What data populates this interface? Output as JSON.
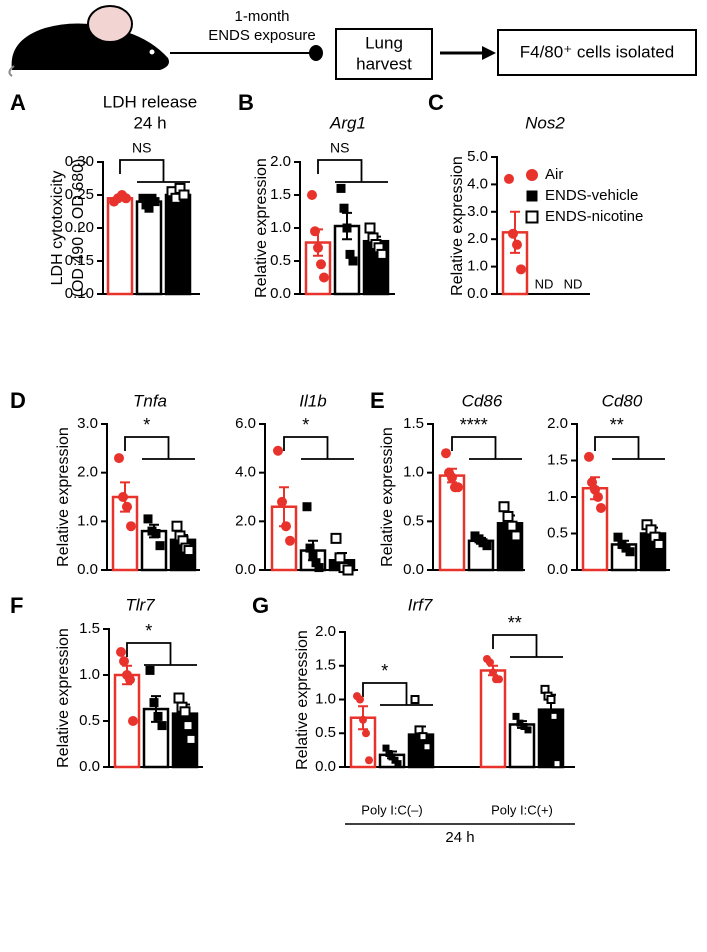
{
  "diagram": {
    "exposure": [
      "1-month",
      "ENDS exposure"
    ],
    "harvest": [
      "Lung",
      "harvest"
    ],
    "isolated": "F4/80⁺ cells isolated"
  },
  "legend": {
    "entries": [
      {
        "name": "Air",
        "marker": "circle",
        "color": "#e8322c"
      },
      {
        "name": "ENDS-vehicle",
        "marker": "square",
        "color": "#000000"
      },
      {
        "name": "ENDS-nicotine",
        "marker": "open-square",
        "color": "#000000"
      }
    ]
  },
  "chart_data": [
    {
      "type": "bar",
      "panel": "A",
      "title": "LDH release",
      "subtitle": "24 h",
      "y_label": [
        "LDH cytotoxicity",
        "(OD 490 – OD 680)"
      ],
      "ylim": [
        0.1,
        0.3
      ],
      "yticks": [
        {
          "value": 0.1,
          "label": "0.10"
        },
        0.15,
        {
          "value": 0.2,
          "label": "0.20"
        },
        0.25,
        {
          "value": 0.3,
          "label": "0.30"
        }
      ],
      "significance": [
        "NS"
      ],
      "series": [
        {
          "color": "#e8322c",
          "fill": "#ffffff",
          "marker": "circle",
          "values": [
            0.245
          ],
          "errors": [
            0.003
          ],
          "points": [
            [
              0.24,
              0.245,
              0.25,
              0.245
            ]
          ]
        },
        {
          "color": "#000000",
          "fill": "#ffffff",
          "marker": "square",
          "values": [
            0.24
          ],
          "errors": [
            0.005
          ],
          "points": [
            [
              0.245,
              0.235,
              0.23,
              0.245,
              0.24
            ]
          ]
        },
        {
          "color": "#000000",
          "fill": "#000000",
          "marker": "open-square",
          "values": [
            0.25
          ],
          "errors": [
            0.004
          ],
          "points": [
            [
              0.255,
              0.245,
              0.26,
              0.25
            ]
          ]
        }
      ]
    },
    {
      "type": "bar",
      "panel": "B",
      "title": "Arg1",
      "y_label": "Relative expression",
      "ylim": [
        0,
        2
      ],
      "yticks": [
        {
          "value": 0,
          "label": "0.0"
        },
        0.5,
        {
          "value": 1,
          "label": "1.0"
        },
        1.5,
        {
          "value": 2,
          "label": "2.0"
        }
      ],
      "significance": [
        "NS"
      ],
      "series": [
        {
          "color": "#e8322c",
          "fill": "#ffffff",
          "marker": "circle",
          "values": [
            0.78
          ],
          "errors": [
            0.2
          ],
          "points": [
            [
              1.5,
              0.95,
              0.7,
              0.45,
              0.25
            ]
          ]
        },
        {
          "color": "#000000",
          "fill": "#ffffff",
          "marker": "square",
          "values": [
            1.03
          ],
          "errors": [
            0.2
          ],
          "points": [
            [
              1.6,
              1.3,
              1.0,
              0.6,
              0.5
            ]
          ]
        },
        {
          "color": "#000000",
          "fill": "#000000",
          "marker": "open-square",
          "values": [
            0.8
          ],
          "errors": [
            0.07
          ],
          "points": [
            [
              1.0,
              0.85,
              0.75,
              0.7,
              0.6
            ]
          ]
        }
      ]
    },
    {
      "type": "bar",
      "panel": "C",
      "title": "Nos2",
      "y_label": "Relative expression",
      "ylim": [
        0,
        5
      ],
      "yticks": [
        {
          "value": 0,
          "label": "0.0"
        },
        {
          "value": 1,
          "label": "1.0"
        },
        {
          "value": 2,
          "label": "2.0"
        },
        {
          "value": 3,
          "label": "3.0"
        },
        {
          "value": 4,
          "label": "4.0"
        },
        {
          "value": 5,
          "label": "5.0"
        }
      ],
      "series": [
        {
          "color": "#e8322c",
          "fill": "#ffffff",
          "marker": "circle",
          "values": [
            2.25
          ],
          "errors": [
            0.75
          ],
          "points": [
            [
              4.2,
              2.2,
              1.8,
              0.9
            ]
          ]
        },
        {
          "color": "#000000",
          "fill": "#ffffff",
          "marker": "square",
          "values": [
            null
          ],
          "value_labels": [
            "ND"
          ]
        },
        {
          "color": "#000000",
          "fill": "#000000",
          "marker": "open-square",
          "values": [
            null
          ],
          "value_labels": [
            "ND"
          ]
        }
      ]
    },
    {
      "type": "bar",
      "panel": "D",
      "title": "Tnfa",
      "y_label": "Relative expression",
      "ylim": [
        0,
        3
      ],
      "yticks": [
        {
          "value": 0,
          "label": "0.0"
        },
        {
          "value": 1,
          "label": "1.0"
        },
        {
          "value": 2,
          "label": "2.0"
        },
        {
          "value": 3,
          "label": "3.0"
        }
      ],
      "significance": [
        "*"
      ],
      "series": [
        {
          "color": "#e8322c",
          "fill": "#ffffff",
          "marker": "circle",
          "values": [
            1.5
          ],
          "errors": [
            0.3
          ],
          "points": [
            [
              2.3,
              1.5,
              1.3,
              0.9
            ]
          ]
        },
        {
          "color": "#000000",
          "fill": "#ffffff",
          "marker": "square",
          "values": [
            0.8
          ],
          "errors": [
            0.13
          ],
          "points": [
            [
              1.05,
              0.8,
              0.75,
              0.5
            ]
          ]
        },
        {
          "color": "#000000",
          "fill": "#000000",
          "marker": "open-square",
          "values": [
            0.62
          ],
          "errors": [
            0.1
          ],
          "points": [
            [
              0.9,
              0.7,
              0.6,
              0.45,
              0.4
            ]
          ]
        }
      ]
    },
    {
      "type": "bar",
      "title": "Il1b",
      "ylim": [
        0,
        6
      ],
      "yticks": [
        {
          "value": 0,
          "label": "0.0"
        },
        {
          "value": 2,
          "label": "2.0"
        },
        {
          "value": 4,
          "label": "4.0"
        },
        {
          "value": 6,
          "label": "6.0"
        }
      ],
      "significance": [
        "*"
      ],
      "series": [
        {
          "color": "#e8322c",
          "fill": "#ffffff",
          "marker": "circle",
          "values": [
            2.6
          ],
          "errors": [
            0.8
          ],
          "points": [
            [
              4.9,
              2.8,
              1.8,
              1.2
            ]
          ]
        },
        {
          "color": "#000000",
          "fill": "#ffffff",
          "marker": "square",
          "values": [
            0.8
          ],
          "errors": [
            0.4
          ],
          "points": [
            [
              2.6,
              0.9,
              0.6,
              0.3,
              0.1
            ]
          ]
        },
        {
          "color": "#000000",
          "fill": "#000000",
          "marker": "open-square",
          "values": [
            0.4
          ],
          "errors": [
            0.3
          ],
          "points": [
            [
              1.3,
              0.5,
              0.1,
              0.0
            ]
          ]
        }
      ]
    },
    {
      "type": "bar",
      "panel": "E",
      "title": "Cd86",
      "y_label": "Relative expression",
      "ylim": [
        0,
        1.5
      ],
      "yticks": [
        {
          "value": 0,
          "label": "0.0"
        },
        0.5,
        {
          "value": 1,
          "label": "1.0"
        },
        1.5
      ],
      "significance": [
        "****"
      ],
      "series": [
        {
          "color": "#e8322c",
          "fill": "#ffffff",
          "marker": "circle",
          "values": [
            0.97
          ],
          "errors": [
            0.07
          ],
          "points": [
            [
              1.2,
              1.0,
              0.95,
              0.85,
              0.85
            ]
          ]
        },
        {
          "color": "#000000",
          "fill": "#ffffff",
          "marker": "square",
          "values": [
            0.3
          ],
          "errors": [
            0.03
          ],
          "points": [
            [
              0.35,
              0.32,
              0.28,
              0.25
            ]
          ]
        },
        {
          "color": "#000000",
          "fill": "#000000",
          "marker": "open-square",
          "values": [
            0.48
          ],
          "errors": [
            0.08
          ],
          "points": [
            [
              0.65,
              0.55,
              0.45,
              0.35
            ]
          ]
        }
      ]
    },
    {
      "type": "bar",
      "title": "Cd80",
      "ylim": [
        0,
        2
      ],
      "yticks": [
        {
          "value": 0,
          "label": "0.0"
        },
        0.5,
        {
          "value": 1,
          "label": "1.0"
        },
        1.5,
        {
          "value": 2,
          "label": "2.0"
        }
      ],
      "significance": [
        "**"
      ],
      "series": [
        {
          "color": "#e8322c",
          "fill": "#ffffff",
          "marker": "circle",
          "values": [
            1.12
          ],
          "errors": [
            0.15
          ],
          "points": [
            [
              1.55,
              1.2,
              1.1,
              1.0,
              0.85
            ]
          ]
        },
        {
          "color": "#000000",
          "fill": "#ffffff",
          "marker": "square",
          "values": [
            0.35
          ],
          "errors": [
            0.05
          ],
          "points": [
            [
              0.45,
              0.35,
              0.3,
              0.25
            ]
          ]
        },
        {
          "color": "#000000",
          "fill": "#000000",
          "marker": "open-square",
          "values": [
            0.5
          ],
          "errors": [
            0.08
          ],
          "points": [
            [
              0.62,
              0.55,
              0.45,
              0.35
            ]
          ]
        }
      ]
    },
    {
      "type": "bar",
      "panel": "F",
      "title": "Tlr7",
      "y_label": "Relative expression",
      "ylim": [
        0,
        1.5
      ],
      "yticks": [
        {
          "value": 0,
          "label": "0.0"
        },
        0.5,
        {
          "value": 1,
          "label": "1.0"
        },
        1.5
      ],
      "significance": [
        "*"
      ],
      "series": [
        {
          "color": "#e8322c",
          "fill": "#ffffff",
          "marker": "circle",
          "values": [
            1.0
          ],
          "errors": [
            0.1
          ],
          "points": [
            [
              1.25,
              1.15,
              1.0,
              0.95,
              0.5
            ]
          ]
        },
        {
          "color": "#000000",
          "fill": "#ffffff",
          "marker": "square",
          "values": [
            0.63
          ],
          "errors": [
            0.14
          ],
          "points": [
            [
              1.05,
              0.7,
              0.55,
              0.45
            ]
          ]
        },
        {
          "color": "#000000",
          "fill": "#000000",
          "marker": "open-square",
          "values": [
            0.58
          ],
          "errors": [
            0.1
          ],
          "points": [
            [
              0.75,
              0.65,
              0.6,
              0.45,
              0.3
            ]
          ]
        }
      ]
    },
    {
      "type": "bar",
      "panel": "G",
      "title": "Irf7",
      "y_label": "Relative expression",
      "x_label": "24 h",
      "categories": [
        "Poly I:C(–)",
        "Poly I:C(+)"
      ],
      "ylim": [
        0,
        2
      ],
      "yticks": [
        {
          "value": 0,
          "label": "0.0"
        },
        0.5,
        {
          "value": 1,
          "label": "1.0"
        },
        1.5,
        {
          "value": 2,
          "label": "2.0"
        }
      ],
      "significance": [
        "*",
        "**"
      ],
      "series": [
        {
          "color": "#e8322c",
          "fill": "#ffffff",
          "marker": "circle",
          "values": [
            0.73,
            1.43
          ],
          "errors": [
            0.17,
            0.07
          ],
          "points": [
            [
              1.05,
              1.0,
              0.7,
              0.5,
              0.1
            ],
            [
              1.6,
              1.55,
              1.4,
              1.3,
              1.3
            ]
          ]
        },
        {
          "color": "#000000",
          "fill": "#ffffff",
          "marker": "square",
          "values": [
            0.18,
            0.63
          ],
          "errors": [
            0.05,
            0.05
          ],
          "points": [
            [
              0.28,
              0.2,
              0.15,
              0.1,
              0.05
            ],
            [
              0.75,
              0.65,
              0.6,
              0.55
            ]
          ]
        },
        {
          "color": "#000000",
          "fill": "#000000",
          "marker": "open-square",
          "values": [
            0.48,
            0.85
          ],
          "errors": [
            0.12,
            0.22
          ],
          "points": [
            [
              1.0,
              0.55,
              0.45,
              0.3
            ],
            [
              1.15,
              1.05,
              1.0,
              0.75,
              0.05
            ]
          ]
        }
      ]
    }
  ]
}
